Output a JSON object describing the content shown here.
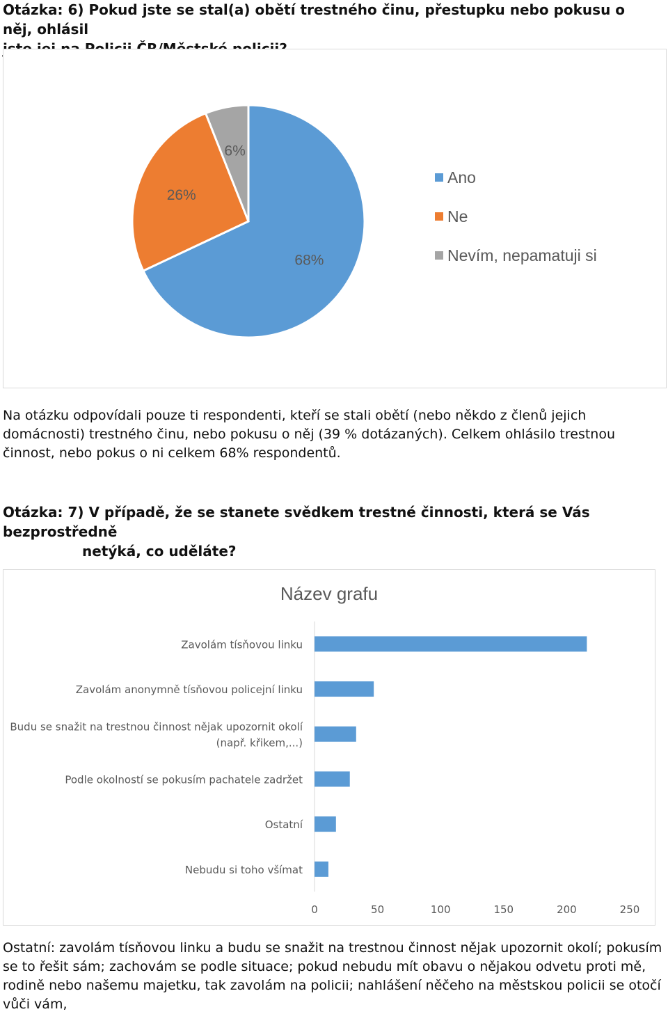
{
  "question6": {
    "title_line1": "Otázka: 6) Pokud jste se stal(a) obětí trestného činu, přestupku nebo pokusu o něj, ohlásil",
    "title_line2": "jste jej na Policii ČR/Městské policii?"
  },
  "question6_note": "Na otázku odpovídali pouze ti respondenti, kteří se stali obětí (nebo někdo z členů jejich domácnosti) trestného činu, nebo pokusu o něj (39 % dotázaných). Celkem ohlásilo trestnou činnost, nebo pokus o ni celkem 68% respondentů.",
  "question7": {
    "title_line1": "Otázka: 7) V případě, že se stanete svědkem trestné činnosti, která se Vás bezprostředně",
    "title_line2": "netýká, co uděláte?"
  },
  "question7_note": "Ostatní: zavolám tísňovou linku a budu se snažit na trestnou činnost nějak upozornit okolí; pokusím se to řešit sám; zachovám se podle situace; pokud nebudu mít obavu o nějakou odvetu proti mě, rodině nebo našemu majetku, tak zavolám na policii; nahlášení něčeho na městskou policii se otočí vůči vám,",
  "colors": {
    "blue": "#5b9bd5",
    "orange": "#ed7d31",
    "gray": "#a5a5a5",
    "text_gray": "#595959"
  },
  "chart_data": [
    {
      "type": "pie",
      "title": "",
      "slices": [
        {
          "name": "Ano",
          "value": 68,
          "label": "68%",
          "color": "#5b9bd5"
        },
        {
          "name": "Ne",
          "value": 26,
          "label": "26%",
          "color": "#ed7d31"
        },
        {
          "name": "Nevím, nepamatuji si",
          "value": 6,
          "label": "6%",
          "color": "#a5a5a5"
        }
      ],
      "legend": "right"
    },
    {
      "type": "bar",
      "orientation": "horizontal",
      "title": "Název grafu",
      "categories": [
        "Zavolám tísňovou linku",
        "Zavolám anonymně tísňovou policejní linku",
        "Budu se snažit na trestnou činnost nějak upozornit okolí (např. křikem,...)",
        "Podle okolností se pokusím pachatele zadržet",
        "Ostatní",
        "Nebudu si toho všímat"
      ],
      "category_label_lines": [
        [
          "Zavolám tísňovou linku"
        ],
        [
          "Zavolám anonymně tísňovou policejní linku"
        ],
        [
          "Budu se snažit na trestnou činnost nějak upozornit okolí",
          "(např. křikem,...)"
        ],
        [
          "Podle okolností se pokusím pachatele zadržet"
        ],
        [
          "Ostatní"
        ],
        [
          "Nebudu si toho všímat"
        ]
      ],
      "values": [
        216,
        47,
        33,
        28,
        17,
        11
      ],
      "xlim": [
        0,
        250
      ],
      "xticks": [
        "0",
        "50",
        "100",
        "150",
        "200",
        "250"
      ],
      "grid": false,
      "color": "#5b9bd5"
    }
  ]
}
